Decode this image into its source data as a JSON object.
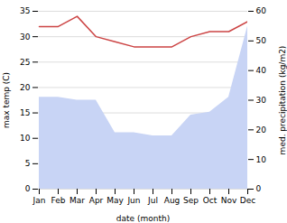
{
  "chart_data": {
    "type": "line",
    "categories": [
      "Jan",
      "Feb",
      "Mar",
      "Apr",
      "May",
      "Jun",
      "Jul",
      "Aug",
      "Sep",
      "Oct",
      "Nov",
      "Dec"
    ],
    "xlabel": "date (month)",
    "ylabel": "max temp (C)",
    "y2label": "med. precipitation (kg/m2)",
    "ylim": [
      0,
      35
    ],
    "yticks": [
      0,
      5,
      10,
      15,
      20,
      25,
      30,
      35
    ],
    "y2lim": [
      0,
      60
    ],
    "y2ticks": [
      0,
      10,
      20,
      30,
      40,
      50,
      60
    ],
    "grid": true,
    "series": [
      {
        "type": "area",
        "axis": "y2",
        "color": "#c8d4f5",
        "values": [
          31,
          31,
          30,
          30,
          19,
          19,
          18,
          18,
          25,
          26,
          31,
          55
        ]
      },
      {
        "type": "line",
        "color": "#cc4444",
        "values": [
          32,
          32,
          34,
          30,
          29,
          28,
          28,
          28,
          30,
          31,
          31,
          33
        ]
      }
    ]
  }
}
